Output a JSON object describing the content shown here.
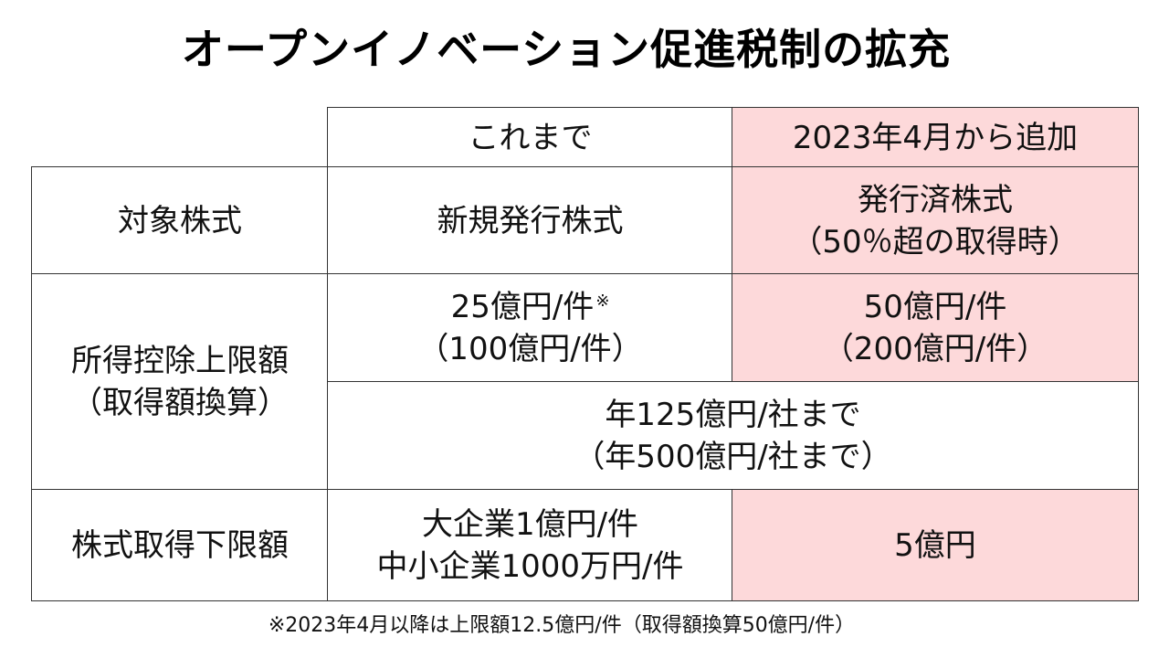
{
  "title": "オープンイノベーション促進税制の拡充",
  "table": {
    "header": {
      "before": "これまで",
      "added": "2023年4月から追加"
    },
    "rows": {
      "target_stock": {
        "label": "対象株式",
        "before": "新規発行株式",
        "added_line1": "発行済株式",
        "added_line2": "（50％超の取得時）"
      },
      "deduction_limit": {
        "label_line1": "所得控除上限額",
        "label_line2": "（取得額換算）",
        "before_line1": "25億円/件",
        "before_mark": "※",
        "before_line2": "（100億円/件）",
        "added_line1": "50億円/件",
        "added_line2": "（200億円/件）",
        "annual_line1": "年125億円/社まで",
        "annual_line2": "（年500億円/社まで）"
      },
      "min_acquisition": {
        "label": "株式取得下限額",
        "before_line1": "大企業1億円/件",
        "before_line2": "中小企業1000万円/件",
        "added": "5億円"
      }
    }
  },
  "footnote": "※2023年4月以降は上限額12.5億円/件（取得額換算50億円/件）",
  "colors": {
    "highlight": "#fdd9da",
    "border": "#333333"
  }
}
